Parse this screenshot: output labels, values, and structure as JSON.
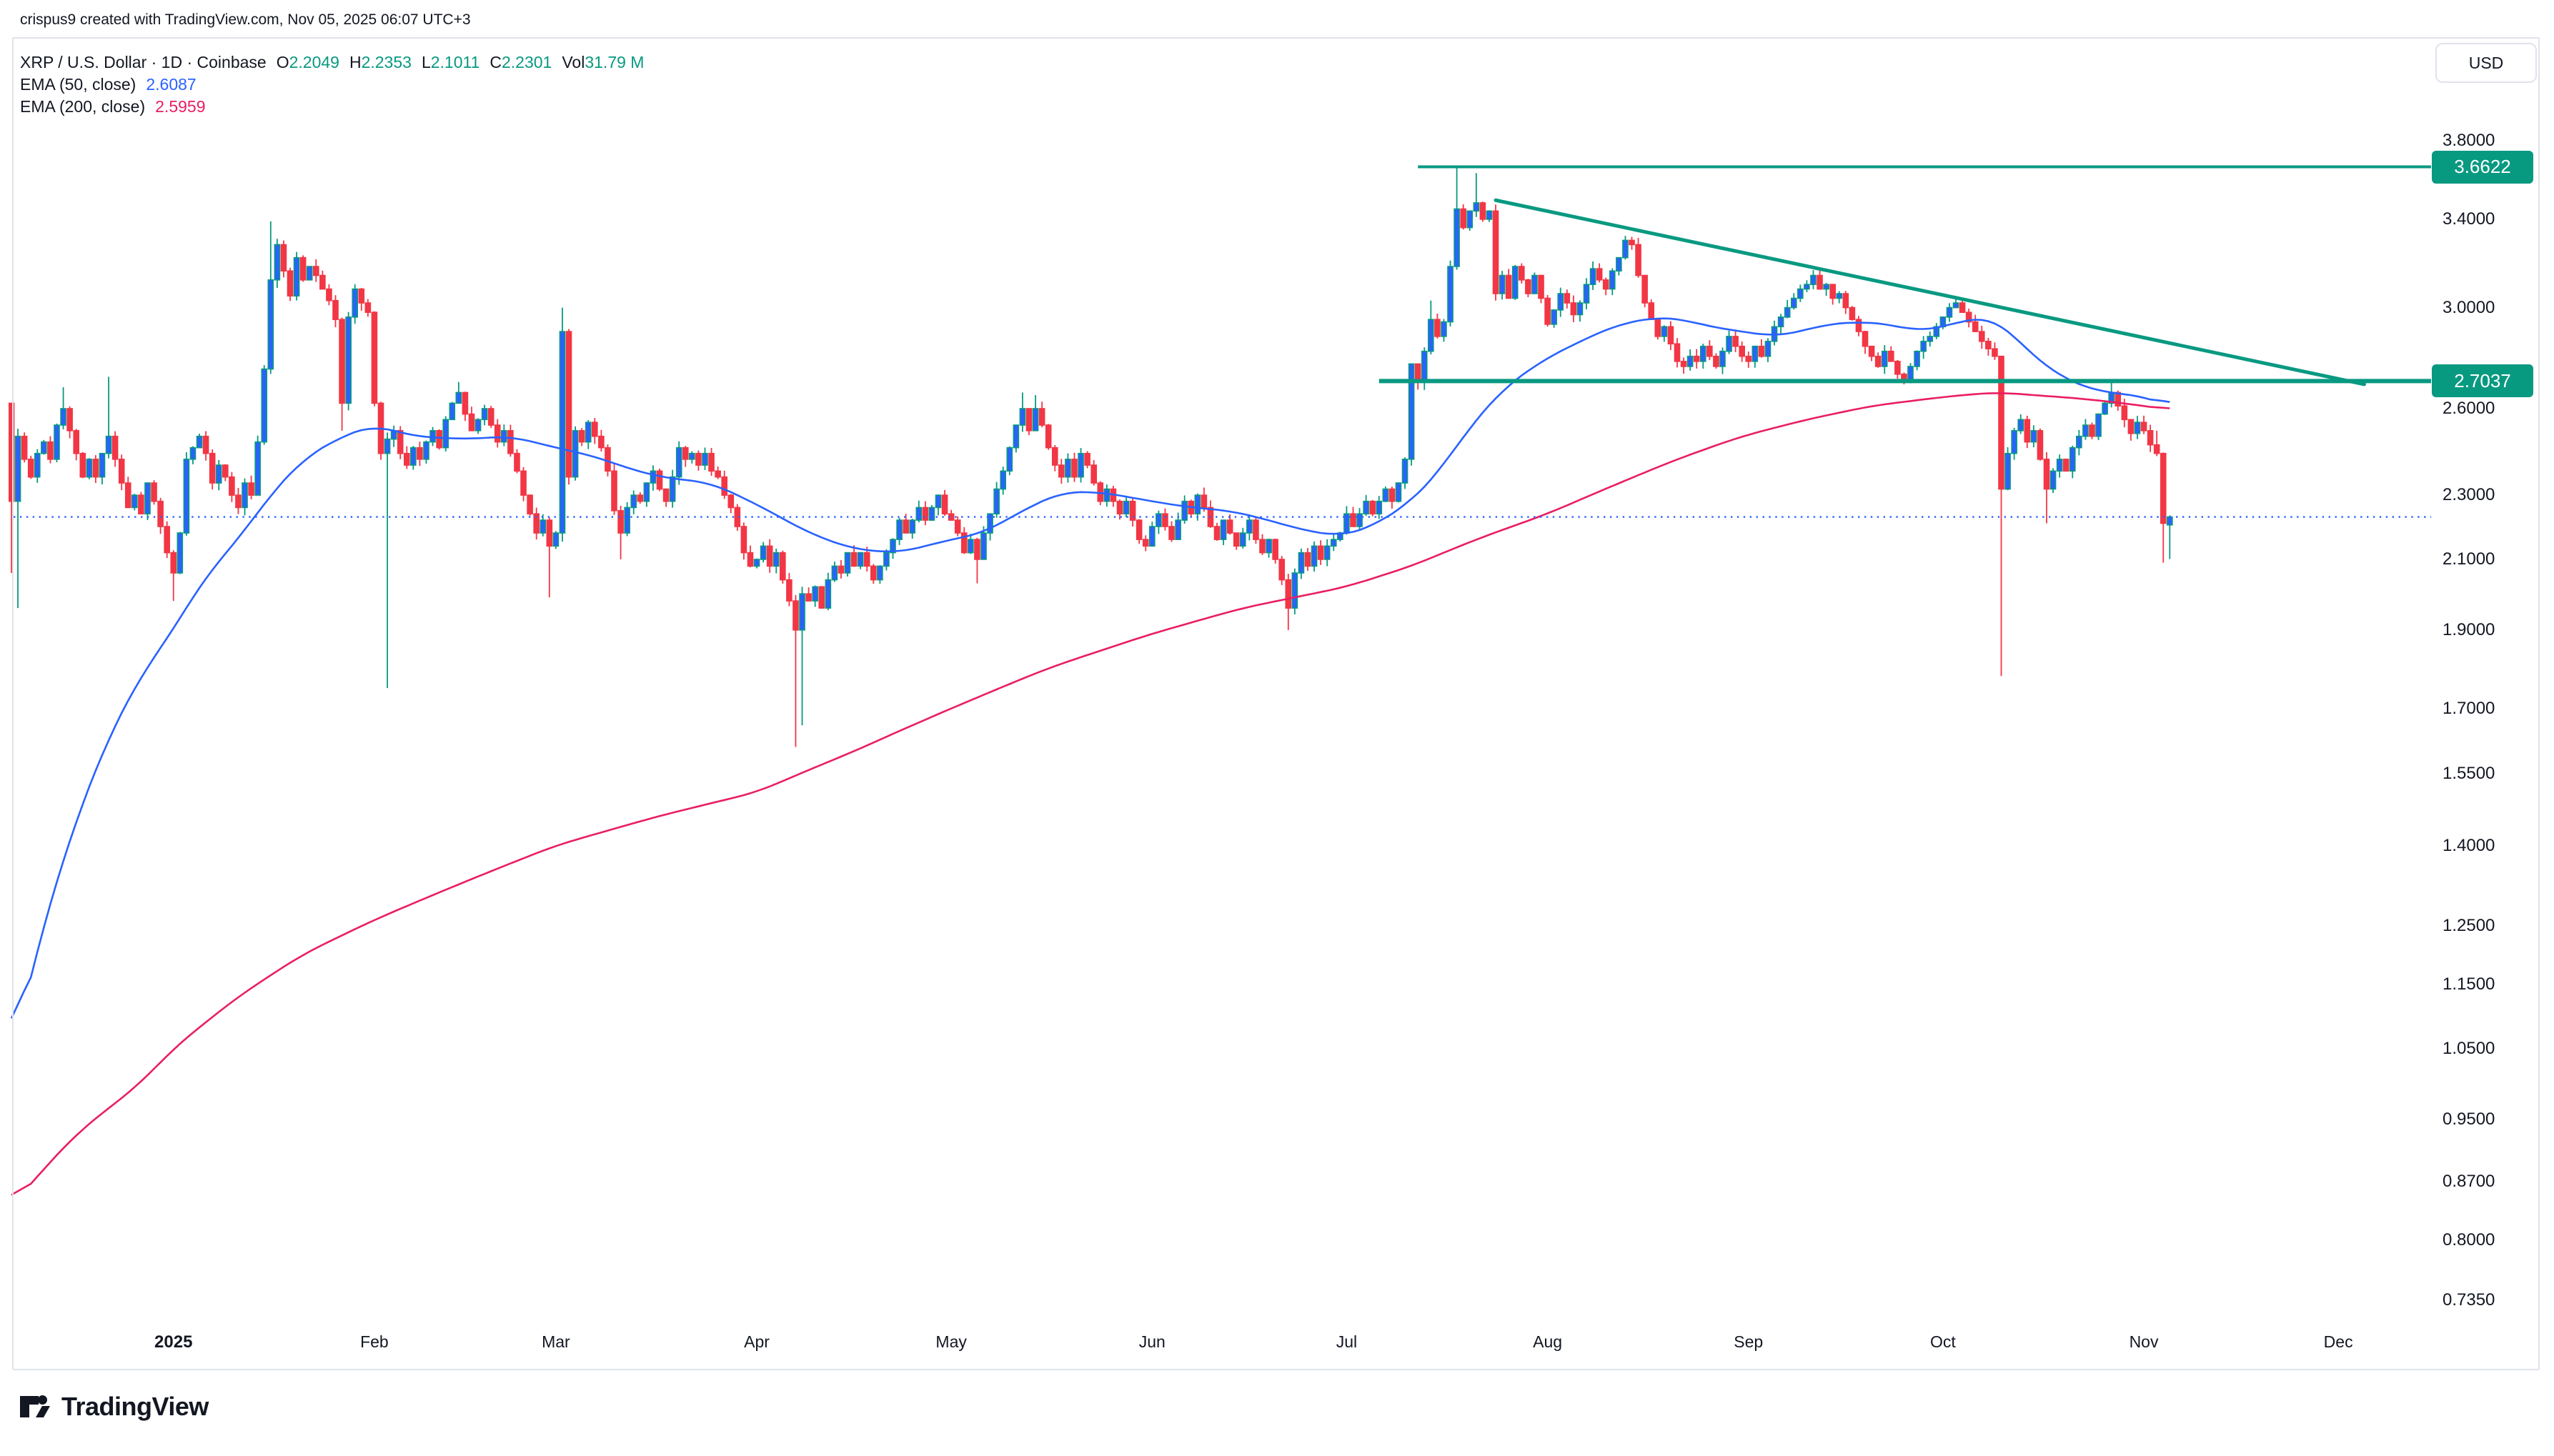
{
  "attribution": "crispus9 created with TradingView.com, Nov 05, 2025 06:07 UTC+3",
  "legend": {
    "symbol_title": "XRP / U.S. Dollar · 1D · Coinbase",
    "o_label": "O",
    "o_value": "2.2049",
    "h_label": "H",
    "h_value": "2.2353",
    "l_label": "L",
    "l_value": "2.1011",
    "c_label": "C",
    "c_value": "2.2301",
    "vol_label": "Vol",
    "vol_value": "31.79 M",
    "ema50_label": "EMA (50, close)",
    "ema50_value": "2.6087",
    "ema200_label": "EMA (200, close)",
    "ema200_value": "2.5959"
  },
  "price_axis": {
    "currency_button": "USD",
    "ticks": [
      {
        "price": 3.8,
        "text": "3.8000"
      },
      {
        "price": 3.4,
        "text": "3.4000"
      },
      {
        "price": 3.0,
        "text": "3.0000"
      },
      {
        "price": 2.6,
        "text": "2.6000"
      },
      {
        "price": 2.3,
        "text": "2.3000"
      },
      {
        "price": 2.1,
        "text": "2.1000"
      },
      {
        "price": 1.9,
        "text": "1.9000"
      },
      {
        "price": 1.7,
        "text": "1.7000"
      },
      {
        "price": 1.55,
        "text": "1.5500"
      },
      {
        "price": 1.4,
        "text": "1.4000"
      },
      {
        "price": 1.25,
        "text": "1.2500"
      },
      {
        "price": 1.15,
        "text": "1.1500"
      },
      {
        "price": 1.05,
        "text": "1.0500"
      },
      {
        "price": 0.95,
        "text": "0.9500"
      },
      {
        "price": 0.87,
        "text": "0.8700"
      },
      {
        "price": 0.8,
        "text": "0.8000"
      },
      {
        "price": 0.735,
        "text": "0.7350"
      }
    ],
    "badges": [
      {
        "name": "resistance-price-label",
        "price": 3.6622,
        "text": "3.6622"
      },
      {
        "name": "support-price-label",
        "price": 2.7037,
        "text": "2.7037"
      }
    ]
  },
  "time_axis": {
    "labels": [
      {
        "text": "2025",
        "day": 25,
        "bold": true
      },
      {
        "text": "Feb",
        "day": 56,
        "bold": false
      },
      {
        "text": "Mar",
        "day": 84,
        "bold": false
      },
      {
        "text": "Apr",
        "day": 115,
        "bold": false
      },
      {
        "text": "May",
        "day": 145,
        "bold": false
      },
      {
        "text": "Jun",
        "day": 176,
        "bold": false
      },
      {
        "text": "Jul",
        "day": 206,
        "bold": false
      },
      {
        "text": "Aug",
        "day": 237,
        "bold": false
      },
      {
        "text": "Sep",
        "day": 268,
        "bold": false
      },
      {
        "text": "Oct",
        "day": 298,
        "bold": false
      },
      {
        "text": "Nov",
        "day": 329,
        "bold": false
      },
      {
        "text": "Dec",
        "day": 359,
        "bold": false
      }
    ]
  },
  "brand": "TradingView",
  "colors": {
    "up_body": "#2962ff",
    "up_wick": "#089981",
    "down": "#f23645",
    "ema50": "#2962ff",
    "ema200": "#e91e63",
    "drawing": "#089981",
    "badge": "#089981",
    "current_price": "#2962ff",
    "border": "#e0e3eb",
    "text": "#131722"
  },
  "chart_data": {
    "type": "candlestick",
    "title": "XRP / U.S. Dollar",
    "timeframe": "1D",
    "exchange": "Coinbase",
    "currency": "USD",
    "start_date": "2024-12-07",
    "end_date": "2025-11-05",
    "days": 334,
    "y_axis": {
      "scale": "log",
      "visible_range": [
        0.71,
        4.4
      ],
      "grid": false,
      "tick_values": [
        3.8,
        3.4,
        3.0,
        2.6,
        2.3,
        2.1,
        1.9,
        1.7,
        1.55,
        1.4,
        1.25,
        1.15,
        1.05,
        0.95,
        0.87,
        0.8,
        0.735
      ]
    },
    "last_candle": {
      "open": 2.2049,
      "high": 2.2353,
      "low": 2.1011,
      "close": 2.2301,
      "volume": "31.79M"
    },
    "ema50_last": 2.6087,
    "ema200_last": 2.5959,
    "closes": [
      2.28,
      2.5,
      2.42,
      2.36,
      2.44,
      2.48,
      2.42,
      2.54,
      2.6,
      2.52,
      2.44,
      2.36,
      2.42,
      2.36,
      2.44,
      2.5,
      2.42,
      2.34,
      2.26,
      2.3,
      2.24,
      2.34,
      2.28,
      2.2,
      2.12,
      2.06,
      2.18,
      2.42,
      2.46,
      2.5,
      2.44,
      2.34,
      2.4,
      2.36,
      2.3,
      2.26,
      2.34,
      2.3,
      2.48,
      2.75,
      3.12,
      3.28,
      3.16,
      3.05,
      3.22,
      3.12,
      3.18,
      3.14,
      3.08,
      3.03,
      2.95,
      2.62,
      2.96,
      3.08,
      3.02,
      2.98,
      2.62,
      2.44,
      2.49,
      2.52,
      2.44,
      2.4,
      2.46,
      2.42,
      2.48,
      2.52,
      2.46,
      2.56,
      2.62,
      2.66,
      2.58,
      2.52,
      2.56,
      2.6,
      2.54,
      2.48,
      2.52,
      2.44,
      2.38,
      2.3,
      2.24,
      2.18,
      2.22,
      2.14,
      2.18,
      2.9,
      2.36,
      2.52,
      2.48,
      2.55,
      2.5,
      2.46,
      2.38,
      2.25,
      2.18,
      2.26,
      2.3,
      2.28,
      2.34,
      2.38,
      2.32,
      2.28,
      2.36,
      2.46,
      2.42,
      2.44,
      2.4,
      2.44,
      2.38,
      2.36,
      2.3,
      2.26,
      2.2,
      2.12,
      2.08,
      2.1,
      2.14,
      2.08,
      2.12,
      2.04,
      1.98,
      1.9,
      2.0,
      1.98,
      2.02,
      1.96,
      2.04,
      2.08,
      2.06,
      2.12,
      2.08,
      2.12,
      2.08,
      2.04,
      2.08,
      2.12,
      2.16,
      2.22,
      2.18,
      2.22,
      2.26,
      2.22,
      2.26,
      2.3,
      2.24,
      2.22,
      2.18,
      2.12,
      2.16,
      2.1,
      2.18,
      2.24,
      2.32,
      2.38,
      2.46,
      2.54,
      2.6,
      2.52,
      2.6,
      2.54,
      2.46,
      2.4,
      2.36,
      2.42,
      2.36,
      2.44,
      2.4,
      2.34,
      2.28,
      2.32,
      2.28,
      2.24,
      2.28,
      2.22,
      2.16,
      2.14,
      2.2,
      2.24,
      2.2,
      2.16,
      2.22,
      2.28,
      2.24,
      2.3,
      2.26,
      2.2,
      2.16,
      2.22,
      2.18,
      2.14,
      2.18,
      2.22,
      2.16,
      2.12,
      2.16,
      2.1,
      2.04,
      1.96,
      2.06,
      2.12,
      2.08,
      2.14,
      2.1,
      2.14,
      2.16,
      2.18,
      2.24,
      2.2,
      2.24,
      2.28,
      2.24,
      2.28,
      2.32,
      2.28,
      2.34,
      2.42,
      2.77,
      2.7,
      2.82,
      2.95,
      2.88,
      2.94,
      3.18,
      3.45,
      3.36,
      3.44,
      3.48,
      3.4,
      3.44,
      3.06,
      3.14,
      3.04,
      3.18,
      3.12,
      3.06,
      3.14,
      3.04,
      2.93,
      2.99,
      3.06,
      3.02,
      2.97,
      3.02,
      3.1,
      3.17,
      3.12,
      3.08,
      3.16,
      3.22,
      3.3,
      3.28,
      3.14,
      3.02,
      2.95,
      2.88,
      2.92,
      2.85,
      2.78,
      2.76,
      2.8,
      2.78,
      2.84,
      2.8,
      2.76,
      2.82,
      2.88,
      2.84,
      2.8,
      2.78,
      2.84,
      2.8,
      2.86,
      2.92,
      2.96,
      3.0,
      3.04,
      3.08,
      3.1,
      3.14,
      3.08,
      3.1,
      3.04,
      3.06,
      3.0,
      2.95,
      2.9,
      2.84,
      2.8,
      2.76,
      2.82,
      2.78,
      2.73,
      2.7,
      2.76,
      2.82,
      2.86,
      2.88,
      2.92,
      2.96,
      3.0,
      3.02,
      2.98,
      2.94,
      2.9,
      2.86,
      2.83,
      2.8,
      2.32,
      2.44,
      2.52,
      2.56,
      2.48,
      2.52,
      2.42,
      2.32,
      2.38,
      2.42,
      2.38,
      2.46,
      2.5,
      2.54,
      2.5,
      2.58,
      2.62,
      2.66,
      2.61,
      2.56,
      2.51,
      2.55,
      2.52,
      2.47,
      2.44,
      2.21,
      2.2301
    ],
    "first_open": 2.62,
    "overrides": {
      "0": {
        "o": 2.62,
        "l": 2.06
      },
      "1": {
        "l": 1.96
      },
      "8": {
        "h": 2.68
      },
      "15": {
        "h": 2.72
      },
      "25": {
        "l": 1.98
      },
      "40": {
        "h": 3.39
      },
      "51": {
        "l": 2.52
      },
      "58": {
        "l": 1.75
      },
      "69": {
        "h": 2.7
      },
      "83": {
        "l": 1.99
      },
      "85": {
        "h": 3.0
      },
      "94": {
        "l": 2.1
      },
      "121": {
        "l": 1.61
      },
      "122": {
        "l": 1.66
      },
      "149": {
        "l": 2.03
      },
      "156": {
        "h": 2.66
      },
      "158": {
        "h": 2.65
      },
      "197": {
        "l": 1.9
      },
      "219": {
        "h": 3.03
      },
      "223": {
        "h": 3.662
      },
      "226": {
        "h": 3.63
      },
      "307": {
        "l": 1.78
      },
      "314": {
        "l": 2.21
      },
      "324": {
        "h": 2.705
      },
      "331": {
        "h": 2.52
      },
      "332": {
        "l": 2.09
      },
      "333": {
        "o": 2.2049,
        "h": 2.2353,
        "l": 2.1011,
        "c": 2.2301
      }
    },
    "wick_noise": 0.011,
    "seed": 7,
    "ema50_points": [
      [
        0,
        1.03
      ],
      [
        5,
        1.25
      ],
      [
        10,
        1.45
      ],
      [
        15,
        1.63
      ],
      [
        20,
        1.78
      ],
      [
        25,
        1.9
      ],
      [
        30,
        2.05
      ],
      [
        35,
        2.16
      ],
      [
        40,
        2.3
      ],
      [
        45,
        2.42
      ],
      [
        51,
        2.5
      ],
      [
        56,
        2.54
      ],
      [
        62,
        2.5
      ],
      [
        70,
        2.49
      ],
      [
        77,
        2.5
      ],
      [
        84,
        2.46
      ],
      [
        90,
        2.43
      ],
      [
        95,
        2.39
      ],
      [
        100,
        2.36
      ],
      [
        108,
        2.34
      ],
      [
        115,
        2.27
      ],
      [
        123,
        2.18
      ],
      [
        130,
        2.13
      ],
      [
        137,
        2.12
      ],
      [
        145,
        2.16
      ],
      [
        150,
        2.18
      ],
      [
        156,
        2.25
      ],
      [
        162,
        2.31
      ],
      [
        168,
        2.31
      ],
      [
        176,
        2.28
      ],
      [
        182,
        2.26
      ],
      [
        188,
        2.25
      ],
      [
        194,
        2.22
      ],
      [
        199,
        2.19
      ],
      [
        205,
        2.17
      ],
      [
        210,
        2.2
      ],
      [
        216,
        2.28
      ],
      [
        220,
        2.37
      ],
      [
        225,
        2.53
      ],
      [
        230,
        2.67
      ],
      [
        236,
        2.78
      ],
      [
        242,
        2.86
      ],
      [
        248,
        2.93
      ],
      [
        254,
        2.96
      ],
      [
        258,
        2.95
      ],
      [
        262,
        2.92
      ],
      [
        267,
        2.9
      ],
      [
        272,
        2.88
      ],
      [
        276,
        2.9
      ],
      [
        280,
        2.93
      ],
      [
        285,
        2.94
      ],
      [
        290,
        2.93
      ],
      [
        294,
        2.9
      ],
      [
        298,
        2.92
      ],
      [
        302,
        2.95
      ],
      [
        305,
        2.96
      ],
      [
        307,
        2.93
      ],
      [
        309,
        2.88
      ],
      [
        312,
        2.8
      ],
      [
        315,
        2.74
      ],
      [
        318,
        2.7
      ],
      [
        321,
        2.67
      ],
      [
        324,
        2.66
      ],
      [
        327,
        2.65
      ],
      [
        330,
        2.64
      ],
      [
        333,
        2.6087
      ]
    ],
    "ema200_points": [
      [
        0,
        0.84
      ],
      [
        10,
        0.93
      ],
      [
        20,
        1.0
      ],
      [
        25,
        1.05
      ],
      [
        35,
        1.13
      ],
      [
        45,
        1.2
      ],
      [
        56,
        1.26
      ],
      [
        70,
        1.33
      ],
      [
        84,
        1.4
      ],
      [
        100,
        1.46
      ],
      [
        115,
        1.51
      ],
      [
        130,
        1.6
      ],
      [
        145,
        1.7
      ],
      [
        160,
        1.8
      ],
      [
        176,
        1.89
      ],
      [
        190,
        1.96
      ],
      [
        206,
        2.02
      ],
      [
        216,
        2.08
      ],
      [
        226,
        2.16
      ],
      [
        237,
        2.24
      ],
      [
        247,
        2.33
      ],
      [
        257,
        2.42
      ],
      [
        267,
        2.5
      ],
      [
        277,
        2.56
      ],
      [
        287,
        2.61
      ],
      [
        297,
        2.64
      ],
      [
        303,
        2.655
      ],
      [
        307,
        2.66
      ],
      [
        312,
        2.65
      ],
      [
        318,
        2.64
      ],
      [
        324,
        2.625
      ],
      [
        329,
        2.61
      ],
      [
        333,
        2.5959
      ]
    ],
    "drawings": {
      "resistance_line": {
        "price": 3.6622,
        "from_day": 217,
        "label": "3.6622"
      },
      "support_line": {
        "price": 2.7037,
        "from_day": 211,
        "label": "2.7037"
      },
      "descending_trendline": {
        "from": {
          "day": 229,
          "price": 3.493
        },
        "to": {
          "day": 363,
          "price": 2.691
        }
      },
      "current_price_dotted_line": {
        "price": 2.2301
      }
    }
  }
}
